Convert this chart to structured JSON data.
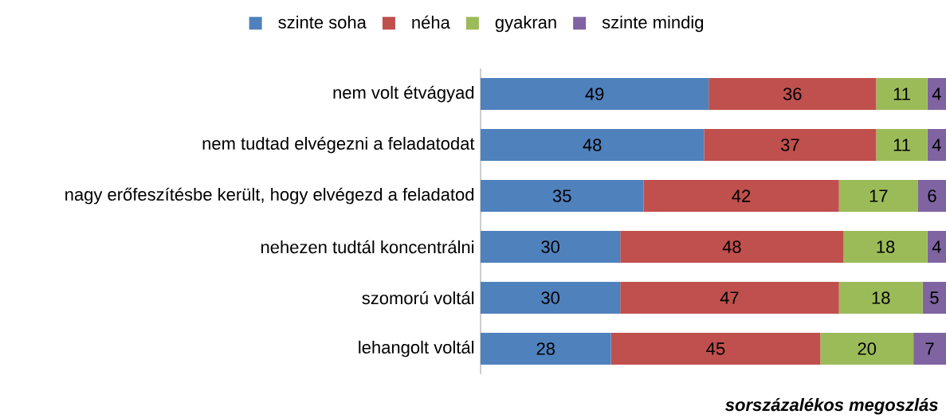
{
  "chart_data": {
    "type": "bar",
    "orientation": "horizontal",
    "stacked": true,
    "data_labels": true,
    "legend": "top",
    "categories": [
      "nem volt étvágyad",
      "nem tudtad elvégezni a feladatodat",
      "nagy erőfeszítésbe került, hogy elvégezd a feladatod",
      "nehezen tudtál koncentrálni",
      "szomorú voltál",
      "lehangolt voltál"
    ],
    "series": [
      {
        "name": "szinte soha",
        "color": "#4f81bd",
        "values": [
          49,
          48,
          35,
          30,
          30,
          28
        ]
      },
      {
        "name": "néha",
        "color": "#c0504d",
        "values": [
          36,
          37,
          42,
          48,
          47,
          45
        ]
      },
      {
        "name": "gyakran",
        "color": "#9bbb59",
        "values": [
          11,
          11,
          17,
          18,
          18,
          20
        ]
      },
      {
        "name": "szinte mindig",
        "color": "#8064a2",
        "values": [
          4,
          4,
          6,
          4,
          5,
          7
        ]
      }
    ],
    "annotations": [
      "sorszázalékos megoszlás"
    ]
  }
}
